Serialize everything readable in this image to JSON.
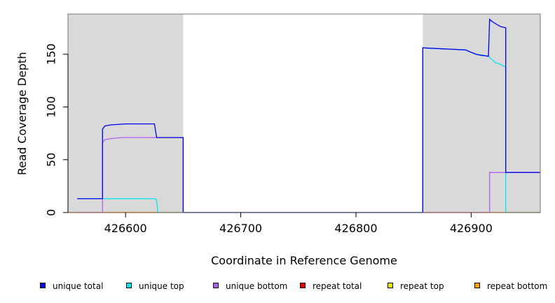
{
  "chart_data": {
    "type": "line",
    "xlabel": "Coordinate in Reference Genome",
    "ylabel": "Read Coverage Depth",
    "xlim": [
      426550,
      426960
    ],
    "ylim": [
      0,
      188
    ],
    "x_ticks": [
      426600,
      426700,
      426800,
      426900
    ],
    "y_ticks": [
      0,
      50,
      100,
      150
    ],
    "shaded_regions": [
      {
        "from": 426550,
        "to": 426650,
        "color": "#d9d9d9"
      },
      {
        "from": 426858,
        "to": 426960,
        "color": "#d9d9d9"
      }
    ],
    "legend_position": "bottom",
    "series": [
      {
        "name": "unique total",
        "color": "#0000ee",
        "x": [
          426558,
          426580,
          426580,
          426582,
          426587,
          426600,
          426625,
          426627,
          426650,
          426650,
          426858,
          426858,
          426895,
          426904,
          426908,
          426915,
          426916,
          426918,
          426921,
          426924,
          426926,
          426930,
          426930,
          426960
        ],
        "y": [
          13,
          13,
          79,
          82,
          83,
          84,
          84,
          71,
          71,
          0,
          0,
          156,
          154,
          150,
          149,
          148,
          183,
          181,
          179,
          177,
          176,
          175,
          38,
          38
        ]
      },
      {
        "name": "unique top",
        "color": "#00e5ee",
        "x": [
          426558,
          426580,
          426600,
          426626,
          426627,
          426628,
          426650,
          426858,
          426858,
          426895,
          426904,
          426910,
          426915,
          426918,
          426921,
          426924,
          426928,
          426930,
          426930,
          426960
        ],
        "y": [
          13,
          13,
          13,
          13,
          11,
          0,
          0,
          0,
          156,
          154,
          150,
          149,
          148,
          145,
          142,
          141,
          139,
          137,
          0,
          0
        ]
      },
      {
        "name": "unique bottom",
        "color": "#b060f0",
        "x": [
          426558,
          426580,
          426580,
          426582,
          426587,
          426597,
          426627,
          426650,
          426650,
          426916,
          426916,
          426960
        ],
        "y": [
          0,
          0,
          66,
          69,
          70,
          71,
          71,
          71,
          0,
          0,
          38,
          38
        ]
      },
      {
        "name": "repeat total",
        "color": "#ee0000",
        "x": [
          426550,
          426960
        ],
        "y": [
          0,
          0
        ]
      },
      {
        "name": "repeat top",
        "color": "#eeee00",
        "x": [
          426550,
          426960
        ],
        "y": [
          0,
          0
        ]
      },
      {
        "name": "repeat bottom",
        "color": "#ffa500",
        "x": [
          426580,
          426627
        ],
        "y": [
          0,
          0
        ]
      }
    ]
  }
}
